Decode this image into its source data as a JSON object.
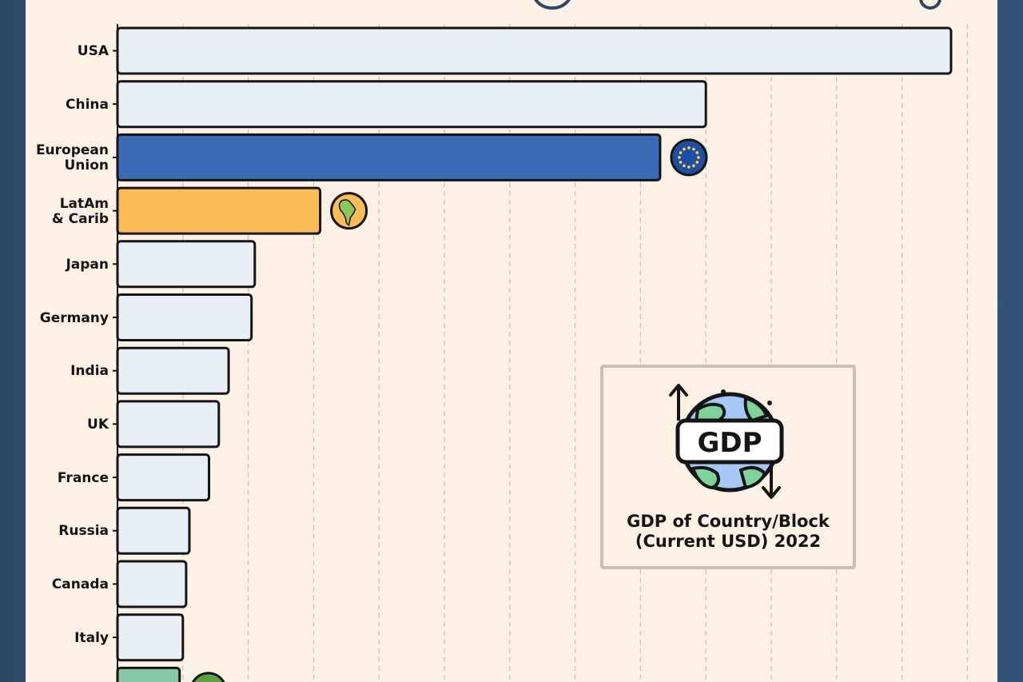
{
  "chart_data": {
    "type": "bar",
    "orientation": "horizontal",
    "categories": [
      "USA",
      "China",
      "European\nUnion",
      "LatAm\n& Carib",
      "Japan",
      "Germany",
      "India",
      "UK",
      "France",
      "Russia",
      "Canada",
      "Italy",
      ""
    ],
    "values": [
      25.5,
      18.0,
      16.6,
      6.2,
      4.2,
      4.1,
      3.4,
      3.1,
      2.8,
      2.2,
      2.1,
      2.0,
      1.9
    ],
    "colors": [
      "#e9eff7",
      "#e9eff7",
      "#3a69b6",
      "#fdbb55",
      "#e9eff7",
      "#e9eff7",
      "#e9eff7",
      "#e9eff7",
      "#e9eff7",
      "#e9eff7",
      "#e9eff7",
      "#e9eff7",
      "#86c8a6"
    ],
    "badges": [
      null,
      null,
      "eu-flag-icon",
      "latam-map-icon",
      null,
      null,
      null,
      null,
      null,
      null,
      null,
      null,
      "globe-icon"
    ],
    "xlim": [
      0,
      26
    ],
    "grid": "vertical-dashed",
    "legend": {
      "icon": "gdp-globe-icon",
      "icon_text": "GDP",
      "title_lines": [
        "GDP of Country/Block",
        "(Current USD) 2022"
      ]
    }
  }
}
